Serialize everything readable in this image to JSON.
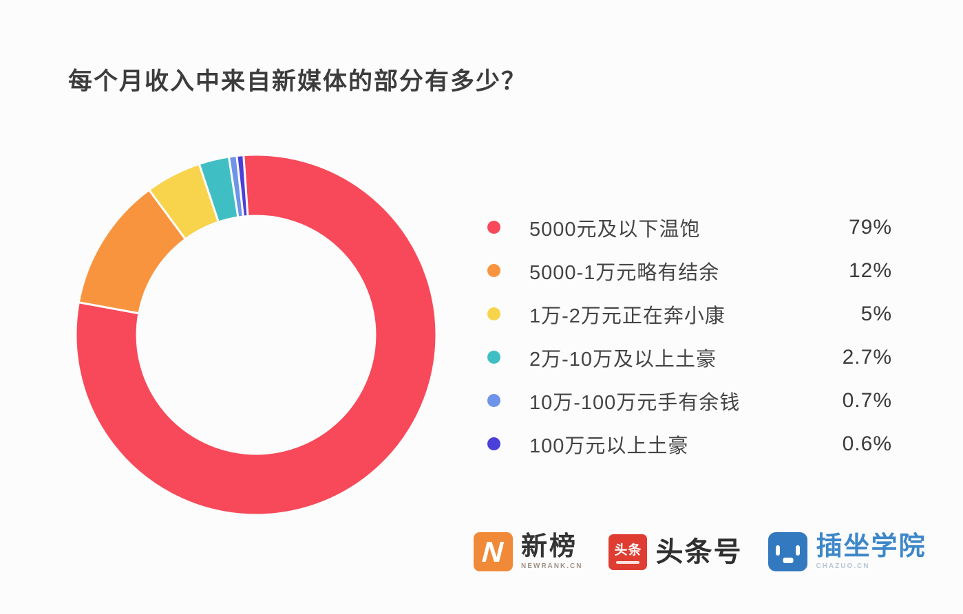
{
  "title": "每个月收入中来自新媒体的部分有多少？",
  "chart_data": {
    "type": "pie",
    "subtype": "donut",
    "title": "每个月收入中来自新媒体的部分有多少？",
    "unit": "%",
    "start_angle_deg": -4,
    "direction": "clockwise",
    "inner_radius_ratio": 0.66,
    "legend_position": "right",
    "slices": [
      {
        "label": "5000元及以下温饱",
        "value": 79,
        "display": "79%",
        "color": "#f8495a"
      },
      {
        "label": "5000-1万元略有结余",
        "value": 12,
        "display": "12%",
        "color": "#f9943e"
      },
      {
        "label": "1万-2万元正在奔小康",
        "value": 5,
        "display": "5%",
        "color": "#f8d44c"
      },
      {
        "label": "2万-10万及以上土豪",
        "value": 2.7,
        "display": "2.7%",
        "color": "#3fbfc4"
      },
      {
        "label": "10万-100万元手有余钱",
        "value": 0.7,
        "display": "0.7%",
        "color": "#6d94e8"
      },
      {
        "label": "100万元以上土豪",
        "value": 0.6,
        "display": "0.6%",
        "color": "#4a3fd8"
      }
    ]
  },
  "footer": {
    "logos": [
      {
        "name": "newrank",
        "badge_glyph": "N",
        "text": "新榜",
        "subtext": "NEWRANK.CN"
      },
      {
        "name": "toutiaohao",
        "badge_glyph": "头条",
        "text": "头条号",
        "subtext": ""
      },
      {
        "name": "chazuo",
        "badge_glyph": "",
        "text": "插坐学院",
        "subtext": "CHAZUO.CN"
      }
    ]
  }
}
